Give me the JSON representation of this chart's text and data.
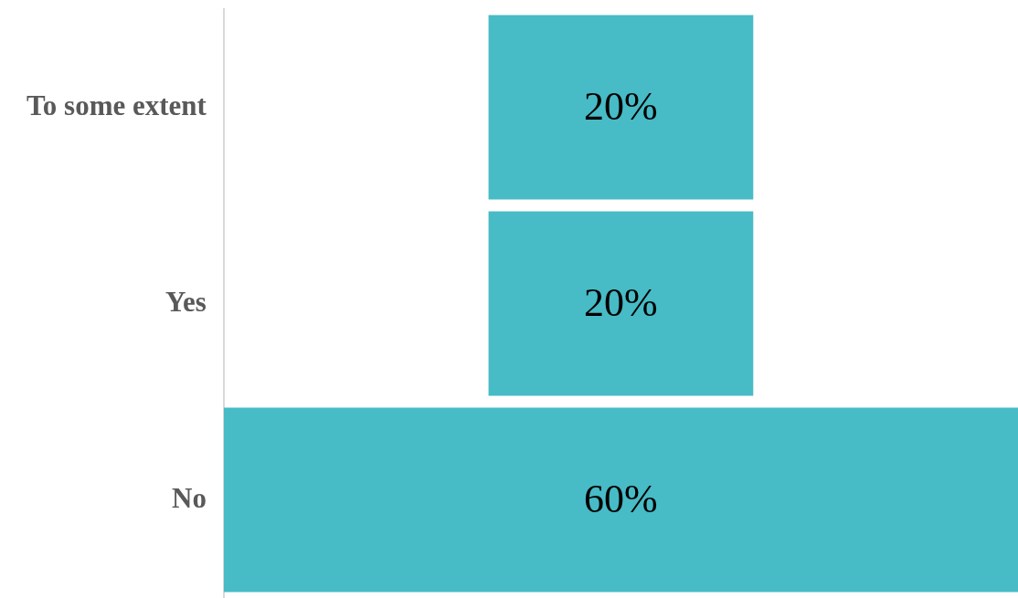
{
  "chart_data": {
    "type": "other",
    "categories": [
      "To some extent",
      "Yes",
      "No"
    ],
    "values": [
      20,
      20,
      60
    ],
    "value_labels": [
      "20%",
      "20%",
      "60%"
    ],
    "color": "#47bbc6"
  }
}
